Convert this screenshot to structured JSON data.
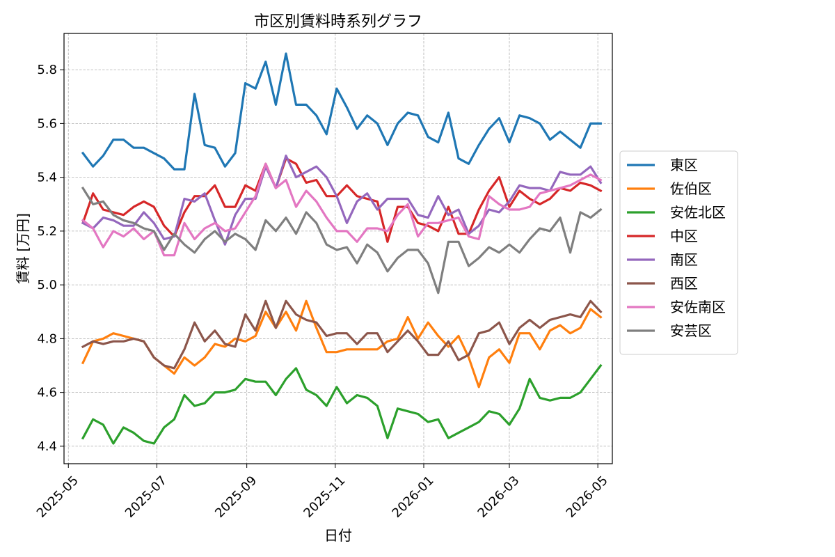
{
  "chart_data": {
    "type": "line",
    "title": "市区別賃料時系列グラフ",
    "xlabel": "日付",
    "ylabel": "賃料 [万円]",
    "x_range": [
      "2025-04-28",
      "2026-05-11"
    ],
    "ylim": [
      4.335,
      5.935
    ],
    "grid": true,
    "legend_position": "right",
    "x_ticks": [
      "2025-05",
      "2025-07",
      "2025-09",
      "2025-11",
      "2026-01",
      "2026-03",
      "2026-05"
    ],
    "x_tick_dates": [
      "2025-05-01",
      "2025-07-01",
      "2025-09-01",
      "2025-11-01",
      "2026-01-01",
      "2026-03-01",
      "2026-05-01"
    ],
    "y_ticks": [
      "4.4",
      "4.6",
      "4.8",
      "5.0",
      "5.2",
      "5.4",
      "5.6",
      "5.8"
    ],
    "x": [
      "2025-05-11",
      "2025-05-18",
      "2025-05-25",
      "2025-06-01",
      "2025-06-08",
      "2025-06-15",
      "2025-06-22",
      "2025-06-29",
      "2025-07-06",
      "2025-07-13",
      "2025-07-20",
      "2025-07-27",
      "2025-08-03",
      "2025-08-10",
      "2025-08-17",
      "2025-08-24",
      "2025-08-31",
      "2025-09-07",
      "2025-09-14",
      "2025-09-21",
      "2025-09-28",
      "2025-10-05",
      "2025-10-12",
      "2025-10-19",
      "2025-10-26",
      "2025-11-02",
      "2025-11-09",
      "2025-11-16",
      "2025-11-23",
      "2025-11-30",
      "2025-12-07",
      "2025-12-14",
      "2025-12-21",
      "2025-12-28",
      "2026-01-04",
      "2026-01-11",
      "2026-01-18",
      "2026-01-25",
      "2026-02-01",
      "2026-02-08",
      "2026-02-15",
      "2026-02-22",
      "2026-03-01",
      "2026-03-08",
      "2026-03-15",
      "2026-03-22",
      "2026-03-29",
      "2026-04-05",
      "2026-04-12",
      "2026-04-19",
      "2026-04-26",
      "2026-05-03"
    ],
    "series": [
      {
        "name": "東区",
        "color": "#1f77b4",
        "values": [
          5.49,
          5.44,
          5.48,
          5.54,
          5.54,
          5.51,
          5.51,
          5.49,
          5.47,
          5.43,
          5.43,
          5.71,
          5.52,
          5.51,
          5.44,
          5.49,
          5.75,
          5.73,
          5.83,
          5.67,
          5.86,
          5.67,
          5.67,
          5.63,
          5.56,
          5.73,
          5.66,
          5.58,
          5.63,
          5.6,
          5.52,
          5.6,
          5.64,
          5.63,
          5.55,
          5.53,
          5.64,
          5.47,
          5.45,
          5.52,
          5.58,
          5.62,
          5.53,
          5.63,
          5.62,
          5.6,
          5.54,
          5.57,
          5.54,
          5.51,
          5.6,
          5.6
        ]
      },
      {
        "name": "佐伯区",
        "color": "#ff7f0e",
        "values": [
          4.71,
          4.79,
          4.8,
          4.82,
          4.81,
          4.8,
          4.79,
          4.73,
          4.7,
          4.67,
          4.73,
          4.7,
          4.73,
          4.78,
          4.77,
          4.8,
          4.79,
          4.81,
          4.9,
          4.84,
          4.9,
          4.83,
          4.94,
          4.84,
          4.75,
          4.75,
          4.76,
          4.76,
          4.76,
          4.76,
          4.79,
          4.8,
          4.88,
          4.8,
          4.86,
          4.81,
          4.77,
          4.81,
          4.73,
          4.62,
          4.73,
          4.76,
          4.71,
          4.82,
          4.82,
          4.76,
          4.83,
          4.85,
          4.82,
          4.84,
          4.91,
          4.88
        ]
      },
      {
        "name": "安佐北区",
        "color": "#2ca02c",
        "values": [
          4.43,
          4.5,
          4.48,
          4.41,
          4.47,
          4.45,
          4.42,
          4.41,
          4.47,
          4.5,
          4.59,
          4.55,
          4.56,
          4.6,
          4.6,
          4.61,
          4.65,
          4.64,
          4.64,
          4.59,
          4.65,
          4.69,
          4.61,
          4.59,
          4.55,
          4.62,
          4.56,
          4.59,
          4.58,
          4.55,
          4.43,
          4.54,
          4.53,
          4.52,
          4.49,
          4.5,
          4.43,
          4.45,
          4.47,
          4.49,
          4.53,
          4.52,
          4.48,
          4.54,
          4.65,
          4.58,
          4.57,
          4.58,
          4.58,
          4.6,
          4.65,
          4.7
        ]
      },
      {
        "name": "中区",
        "color": "#d62728",
        "values": [
          5.23,
          5.34,
          5.28,
          5.27,
          5.26,
          5.29,
          5.31,
          5.29,
          5.22,
          5.18,
          5.27,
          5.33,
          5.33,
          5.37,
          5.29,
          5.29,
          5.37,
          5.35,
          5.45,
          5.36,
          5.47,
          5.45,
          5.38,
          5.39,
          5.33,
          5.33,
          5.37,
          5.33,
          5.32,
          5.31,
          5.16,
          5.29,
          5.29,
          5.23,
          5.22,
          5.2,
          5.29,
          5.19,
          5.19,
          5.28,
          5.35,
          5.4,
          5.29,
          5.35,
          5.32,
          5.3,
          5.32,
          5.36,
          5.35,
          5.38,
          5.37,
          5.35
        ]
      },
      {
        "name": "南区",
        "color": "#9467bd",
        "values": [
          5.23,
          5.21,
          5.25,
          5.24,
          5.22,
          5.22,
          5.27,
          5.23,
          5.17,
          5.18,
          5.32,
          5.31,
          5.34,
          5.24,
          5.15,
          5.26,
          5.32,
          5.32,
          5.44,
          5.36,
          5.48,
          5.4,
          5.42,
          5.44,
          5.4,
          5.33,
          5.23,
          5.31,
          5.34,
          5.28,
          5.32,
          5.32,
          5.32,
          5.26,
          5.25,
          5.33,
          5.26,
          5.28,
          5.19,
          5.22,
          5.28,
          5.27,
          5.31,
          5.37,
          5.36,
          5.36,
          5.35,
          5.42,
          5.41,
          5.41,
          5.44,
          5.38
        ]
      },
      {
        "name": "西区",
        "color": "#8c564b",
        "values": [
          4.77,
          4.79,
          4.78,
          4.79,
          4.79,
          4.8,
          4.79,
          4.73,
          4.7,
          4.69,
          4.76,
          4.86,
          4.79,
          4.83,
          4.78,
          4.77,
          4.89,
          4.83,
          4.94,
          4.84,
          4.94,
          4.89,
          4.87,
          4.86,
          4.81,
          4.82,
          4.82,
          4.78,
          4.82,
          4.82,
          4.75,
          4.79,
          4.83,
          4.79,
          4.74,
          4.74,
          4.79,
          4.72,
          4.74,
          4.82,
          4.83,
          4.86,
          4.78,
          4.84,
          4.87,
          4.84,
          4.87,
          4.88,
          4.89,
          4.88,
          4.94,
          4.9
        ]
      },
      {
        "name": "安佐南区",
        "color": "#e377c2",
        "values": [
          5.24,
          5.21,
          5.14,
          5.2,
          5.18,
          5.21,
          5.17,
          5.2,
          5.11,
          5.11,
          5.23,
          5.17,
          5.21,
          5.23,
          5.2,
          5.21,
          5.27,
          5.33,
          5.45,
          5.36,
          5.39,
          5.29,
          5.35,
          5.31,
          5.25,
          5.2,
          5.2,
          5.16,
          5.21,
          5.21,
          5.2,
          5.26,
          5.3,
          5.18,
          5.23,
          5.23,
          5.24,
          5.25,
          5.18,
          5.17,
          5.33,
          5.3,
          5.28,
          5.28,
          5.29,
          5.34,
          5.35,
          5.36,
          5.37,
          5.39,
          5.41,
          5.39
        ]
      },
      {
        "name": "安芸区",
        "color": "#7f7f7f",
        "values": [
          5.36,
          5.3,
          5.31,
          5.26,
          5.24,
          5.23,
          5.21,
          5.2,
          5.13,
          5.19,
          5.15,
          5.12,
          5.17,
          5.2,
          5.16,
          5.19,
          5.17,
          5.13,
          5.24,
          5.2,
          5.25,
          5.19,
          5.27,
          5.23,
          5.15,
          5.13,
          5.14,
          5.08,
          5.15,
          5.12,
          5.05,
          5.1,
          5.13,
          5.13,
          5.08,
          4.97,
          5.16,
          5.16,
          5.07,
          5.1,
          5.14,
          5.12,
          5.15,
          5.12,
          5.17,
          5.21,
          5.2,
          5.25,
          5.12,
          5.27,
          5.25,
          5.28
        ]
      }
    ]
  }
}
